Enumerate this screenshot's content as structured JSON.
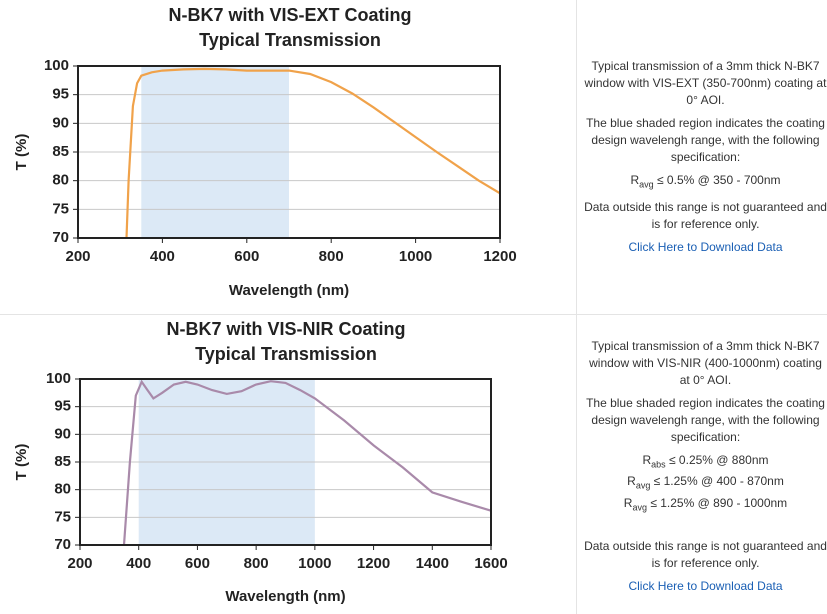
{
  "chart_data": [
    {
      "type": "line",
      "title": "N-BK7 with VIS-EXT Coating",
      "subtitle": "Typical Transmission",
      "xlabel": "Wavelength (nm)",
      "ylabel": "T (%)",
      "color": "#f0a24a",
      "shade": [
        350,
        700
      ],
      "shade_color": "#dce9f6",
      "x": [
        315,
        320,
        330,
        340,
        350,
        375,
        400,
        450,
        500,
        550,
        600,
        650,
        700,
        750,
        800,
        850,
        900,
        950,
        1000,
        1050,
        1100,
        1150,
        1200
      ],
      "values": [
        70,
        80,
        93,
        97,
        98.3,
        98.9,
        99.2,
        99.4,
        99.5,
        99.4,
        99.2,
        99.2,
        99.2,
        98.6,
        97.2,
        95.2,
        92.8,
        90.2,
        87.6,
        85,
        82.5,
        80,
        77.8
      ],
      "xlim": [
        200,
        1200
      ],
      "xticks": [
        200,
        400,
        600,
        800,
        1000,
        1200
      ],
      "ylim": [
        70,
        100
      ],
      "yticks": [
        70,
        75,
        80,
        85,
        90,
        95,
        100
      ],
      "grid": true
    },
    {
      "type": "line",
      "title": "N-BK7 with VIS-NIR Coating",
      "subtitle": "Typical Transmission",
      "xlabel": "Wavelength (nm)",
      "ylabel": "T (%)",
      "color": "#a98aaa",
      "shade": [
        400,
        1000
      ],
      "shade_color": "#dce9f6",
      "x": [
        350,
        370,
        390,
        410,
        430,
        450,
        480,
        520,
        560,
        600,
        650,
        700,
        750,
        800,
        850,
        900,
        950,
        1000,
        1100,
        1200,
        1300,
        1400,
        1500,
        1600
      ],
      "values": [
        70,
        85,
        97,
        99.5,
        98,
        96.5,
        97.5,
        99,
        99.5,
        99,
        98,
        97.3,
        97.8,
        99,
        99.6,
        99.3,
        98,
        96.5,
        92.5,
        88,
        84,
        79.5,
        77.8,
        76.2
      ],
      "xlim": [
        200,
        1600
      ],
      "xticks": [
        200,
        400,
        600,
        800,
        1000,
        1200,
        1400,
        1600
      ],
      "ylim": [
        70,
        100
      ],
      "yticks": [
        70,
        75,
        80,
        85,
        90,
        95,
        100
      ],
      "grid": true
    }
  ],
  "panels": [
    {
      "intro": "Typical transmission of a 3mm thick N-BK7 window with VIS-EXT (350-700nm) coating at 0° AOI.",
      "note": "The blue shaded region indicates the coating design wavelengh range, with the following specification:",
      "specs": [
        {
          "symbol": "R",
          "sub": "avg",
          "text": "≤ 0.5% @ 350 - 700nm"
        }
      ],
      "disclaimer": "Data outside this range is not guaranteed and is for reference only.",
      "link": "Click Here to Download Data"
    },
    {
      "intro": "Typical transmission of a 3mm thick N-BK7 window with VIS-NIR (400-1000nm) coating at 0° AOI.",
      "note": "The blue shaded region indicates the coating design wavelengh range, with the following specification:",
      "specs": [
        {
          "symbol": "R",
          "sub": "abs",
          "text": "≤ 0.25% @ 880nm"
        },
        {
          "symbol": "R",
          "sub": "avg",
          "text": "≤ 1.25% @ 400 - 870nm"
        },
        {
          "symbol": "R",
          "sub": "avg",
          "text": "≤ 1.25% @ 890 - 1000nm"
        }
      ],
      "disclaimer": "Data outside this range is not guaranteed and is for reference only.",
      "link": "Click Here to Download Data"
    }
  ]
}
